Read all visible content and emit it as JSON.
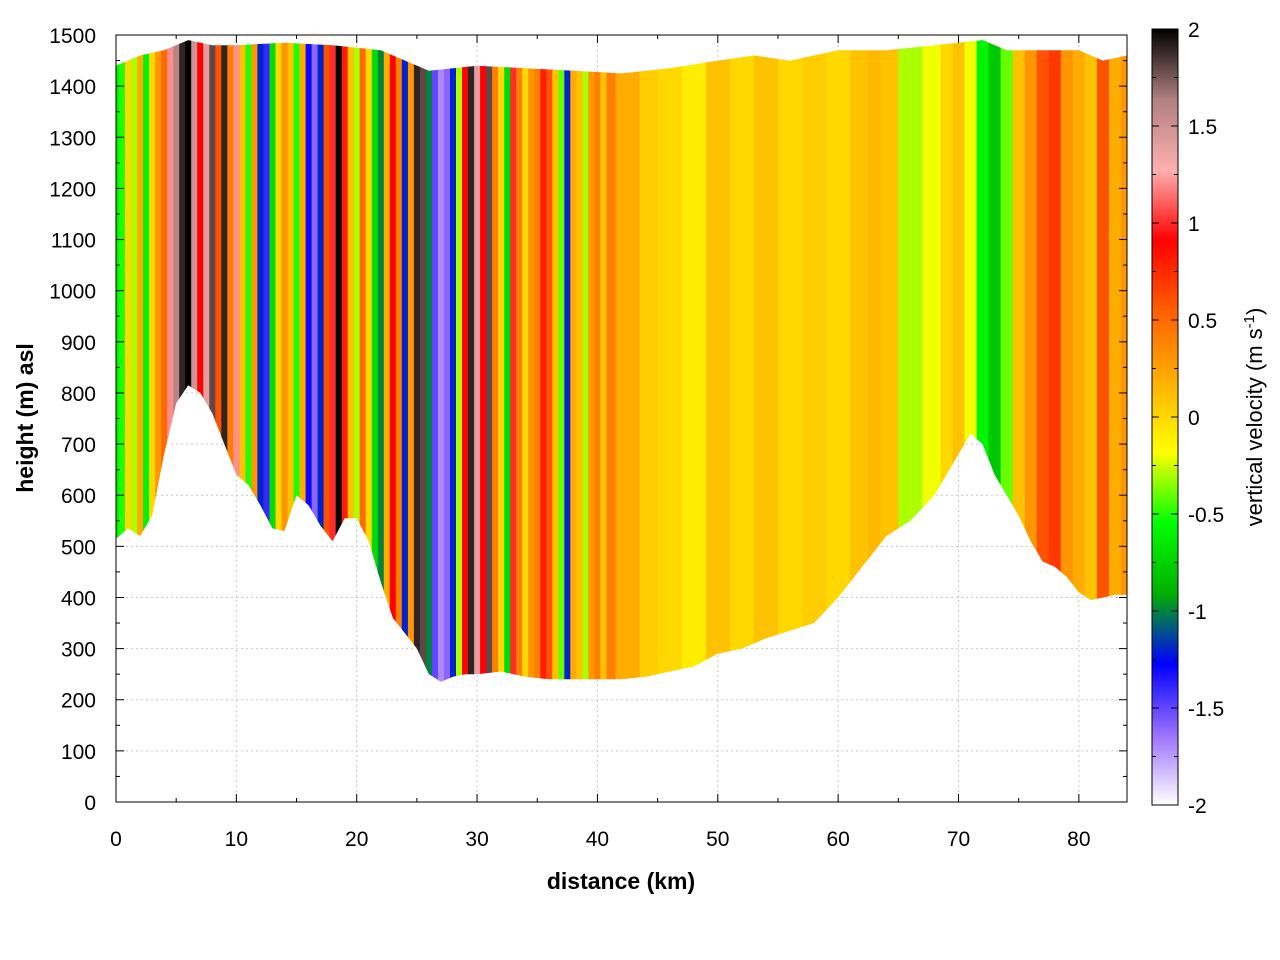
{
  "chart_data": {
    "type": "heatmap",
    "xlabel": "distance (km)",
    "ylabel": "height (m) asl",
    "colorbar_label": "vertical velocity (m s",
    "colorbar_label_sup": "-1",
    "colorbar_label_end": ")",
    "xlim": [
      0,
      84
    ],
    "ylim": [
      0,
      1500
    ],
    "zlim": [
      -2,
      2
    ],
    "grid": true,
    "x_ticks": [
      "0",
      "10",
      "20",
      "30",
      "40",
      "50",
      "60",
      "70",
      "80"
    ],
    "y_ticks": [
      "0",
      "100",
      "200",
      "300",
      "400",
      "500",
      "600",
      "700",
      "800",
      "900",
      "1000",
      "1100",
      "1200",
      "1300",
      "1400",
      "1500"
    ],
    "z_ticks": [
      "2",
      "1.5",
      "1",
      "0.5",
      "0",
      "-0.5",
      "-1",
      "-1.5",
      "-2"
    ],
    "colormap": [
      "#ffffff",
      "#9c70ff",
      "#0000ff",
      "#00b000",
      "#00ff00",
      "#ffff00",
      "#ffb000",
      "#ff6000",
      "#ff0000",
      "#ffb0b0",
      "#b08080",
      "#000000"
    ],
    "terrain_bottom": {
      "x": [
        0,
        1,
        2,
        3,
        4,
        5,
        6,
        7,
        8,
        9,
        10,
        11,
        12,
        13,
        14,
        15,
        16,
        17,
        18,
        19,
        20,
        21,
        22,
        23,
        24,
        25,
        26,
        27,
        28,
        29,
        30,
        32,
        34,
        36,
        38,
        40,
        42,
        44,
        46,
        48,
        50,
        52,
        54,
        56,
        58,
        60,
        62,
        64,
        66,
        68,
        70,
        71,
        72,
        73,
        74,
        75,
        76,
        77,
        78,
        79,
        80,
        81,
        82,
        83,
        84
      ],
      "y": [
        515,
        535,
        520,
        560,
        680,
        780,
        815,
        800,
        760,
        700,
        640,
        620,
        580,
        535,
        530,
        600,
        580,
        540,
        510,
        555,
        555,
        510,
        430,
        360,
        330,
        300,
        250,
        235,
        245,
        250,
        250,
        255,
        245,
        240,
        240,
        240,
        240,
        245,
        255,
        265,
        290,
        300,
        320,
        335,
        350,
        400,
        460,
        520,
        550,
        600,
        680,
        720,
        700,
        640,
        600,
        560,
        510,
        470,
        460,
        440,
        410,
        395,
        400,
        405,
        405
      ]
    },
    "terrain_top": {
      "x": [
        0,
        2,
        4,
        6,
        8,
        10,
        14,
        18,
        22,
        26,
        30,
        34,
        38,
        42,
        46,
        50,
        53,
        56,
        60,
        64,
        68,
        70,
        72,
        74,
        78,
        80,
        82,
        84
      ],
      "y": [
        1440,
        1460,
        1470,
        1490,
        1480,
        1480,
        1485,
        1480,
        1470,
        1430,
        1440,
        1435,
        1430,
        1425,
        1435,
        1450,
        1460,
        1450,
        1470,
        1470,
        1480,
        1485,
        1490,
        1470,
        1470,
        1470,
        1450,
        1460
      ]
    },
    "velocity_columns": {
      "x": [
        0,
        0.5,
        1,
        1.5,
        2,
        2.5,
        3,
        3.5,
        4,
        4.5,
        5,
        5.5,
        6,
        6.5,
        7,
        7.5,
        8,
        8.5,
        9,
        9.5,
        10,
        10.5,
        11,
        11.5,
        12,
        12.5,
        13,
        13.5,
        14,
        14.5,
        15,
        15.5,
        16,
        16.5,
        17,
        17.5,
        18,
        18.5,
        19,
        19.5,
        20,
        20.5,
        21,
        21.5,
        22,
        22.5,
        23,
        23.5,
        24,
        24.5,
        25,
        25.5,
        26,
        26.5,
        27,
        27.5,
        28,
        28.5,
        29,
        29.5,
        30,
        30.5,
        31,
        31.5,
        32,
        32.5,
        33,
        33.5,
        34,
        34.5,
        35,
        35.5,
        36,
        36.5,
        37,
        37.5,
        38,
        38.5,
        39,
        39.5,
        40,
        40.5,
        41,
        42,
        43,
        44,
        46,
        48,
        50,
        52,
        54,
        56,
        58,
        60,
        62,
        63,
        64,
        66,
        68,
        69,
        70,
        71,
        72,
        73,
        74,
        75,
        76,
        77,
        78,
        79,
        80,
        81,
        82,
        83,
        84
      ],
      "w": [
        -0.6,
        -0.5,
        0,
        -0.3,
        0.2,
        -0.6,
        0,
        0.3,
        0.5,
        1.2,
        1.6,
        1.9,
        2.0,
        1.5,
        0.9,
        1.4,
        1.8,
        0.6,
        1.9,
        0.4,
        1.2,
        0.1,
        -0.5,
        0.3,
        -1.2,
        -1.4,
        -0.7,
        0,
        0.3,
        0.1,
        -0.5,
        0.2,
        -1.3,
        -1.6,
        -1.2,
        0.6,
        1.0,
        2.0,
        0.8,
        0.1,
        -0.3,
        0.5,
        0,
        -0.7,
        -1.0,
        0.2,
        0.9,
        0.4,
        -1.2,
        0.3,
        1.9,
        1.8,
        -1.0,
        -1.5,
        -1.7,
        -1.6,
        -1.2,
        -0.3,
        0.9,
        1.9,
        1.4,
        0.9,
        1.8,
        0.4,
        0,
        -0.7,
        1.0,
        0.4,
        0,
        0.3,
        0.4,
        0.8,
        0.6,
        0.1,
        -0.4,
        -1.2,
        0.2,
        0.1,
        -0.3,
        0.3,
        0.4,
        0.1,
        0.4,
        0.2,
        0.2,
        0.05,
        0,
        -0.1,
        0.1,
        0,
        0.1,
        0,
        0.05,
        0,
        0.1,
        0.15,
        0.1,
        -0.3,
        -0.2,
        0,
        0.1,
        -0.2,
        -0.6,
        -0.8,
        -0.4,
        0.1,
        0.3,
        0.6,
        0.7,
        0.3,
        0.2,
        0.1,
        0.6,
        0.2,
        0.3
      ]
    }
  }
}
